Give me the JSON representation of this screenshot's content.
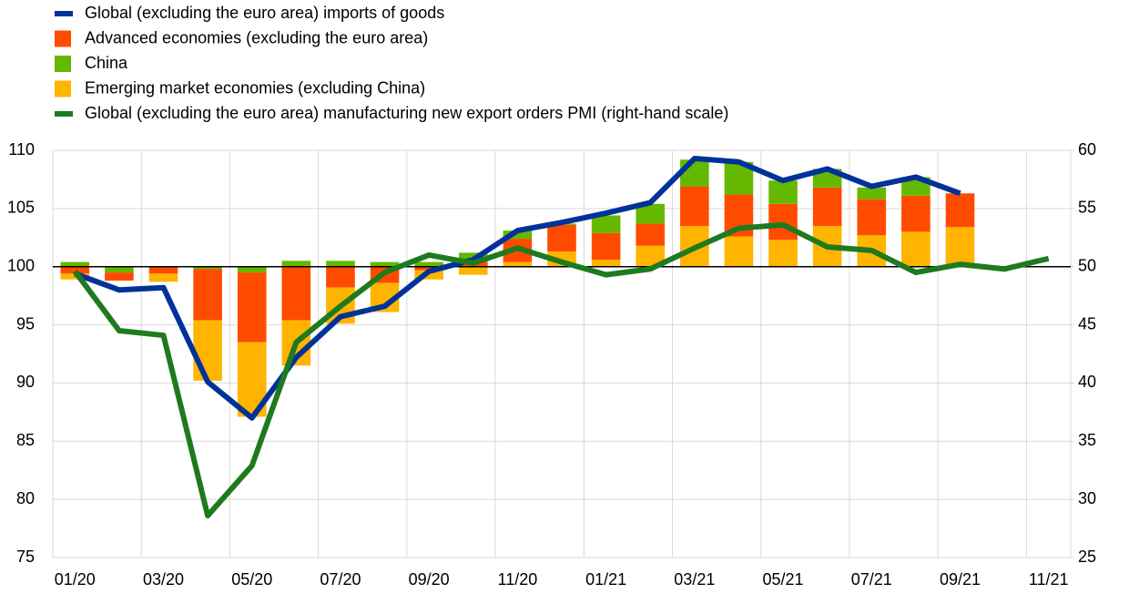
{
  "chart_data": {
    "type": "combo",
    "categories": [
      "01/20",
      null,
      "03/20",
      null,
      "05/20",
      null,
      "07/20",
      null,
      "09/20",
      null,
      "11/20",
      null,
      "01/21",
      null,
      "03/21",
      null,
      "05/21",
      null,
      "07/21",
      null,
      "09/21",
      null,
      "11/21"
    ],
    "ylim": [
      75,
      110
    ],
    "yticks": [
      75,
      80,
      85,
      90,
      95,
      100,
      105,
      110
    ],
    "y2lim": [
      25,
      60
    ],
    "y2ticks": [
      25,
      30,
      35,
      40,
      45,
      50,
      55,
      60
    ],
    "bar_base": 100,
    "grid": true,
    "legend": "top-left",
    "series": [
      {
        "name": "Global (excluding the euro area) imports of goods",
        "type": "line",
        "color": "#003299",
        "values": [
          99.4,
          98.0,
          98.2,
          90.1,
          87.0,
          92.2,
          95.7,
          96.6,
          99.6,
          100.6,
          103.1,
          103.8,
          104.6,
          105.5,
          109.3,
          109.0,
          107.4,
          108.4,
          106.9,
          107.7,
          106.3,
          null,
          null
        ]
      },
      {
        "name": "Advanced economies (excluding the euro area)",
        "type": "bar",
        "color": "#ff4b00",
        "values": [
          -0.6,
          -0.7,
          -0.6,
          -4.4,
          -6.0,
          -4.6,
          -1.8,
          -1.4,
          -0.3,
          0.4,
          2.0,
          2.3,
          2.3,
          1.9,
          3.4,
          3.6,
          3.1,
          3.3,
          3.1,
          3.1,
          2.9,
          null,
          null
        ]
      },
      {
        "name": "China",
        "type": "bar",
        "color": "#65b800",
        "values": [
          0.4,
          -0.5,
          0,
          -0.2,
          -0.5,
          0.5,
          0.5,
          0.4,
          0.4,
          0.8,
          0.7,
          0.1,
          1.5,
          1.7,
          2.3,
          2.8,
          2.0,
          1.6,
          1.0,
          1.6,
          0,
          null,
          null
        ]
      },
      {
        "name": "Emerging market economies (excluding China)",
        "type": "bar",
        "color": "#ffb400",
        "values": [
          -0.5,
          0,
          -0.7,
          -5.2,
          -6.4,
          -3.9,
          -3.1,
          -2.5,
          -0.8,
          -0.7,
          0.4,
          1.3,
          0.6,
          1.8,
          3.5,
          2.6,
          2.3,
          3.5,
          2.7,
          3.0,
          3.4,
          null,
          null
        ]
      },
      {
        "name": "Global (excluding the euro area) manufacturing new export orders PMI (right-hand scale)",
        "type": "line",
        "axis": "y2",
        "color": "#1e7a1e",
        "values": [
          49.6,
          44.5,
          44.1,
          28.6,
          32.9,
          43.5,
          46.6,
          49.5,
          51.0,
          50.3,
          51.6,
          50.4,
          49.3,
          49.8,
          51.6,
          53.3,
          53.6,
          51.7,
          51.4,
          49.5,
          50.2,
          49.8,
          50.7
        ]
      }
    ]
  }
}
